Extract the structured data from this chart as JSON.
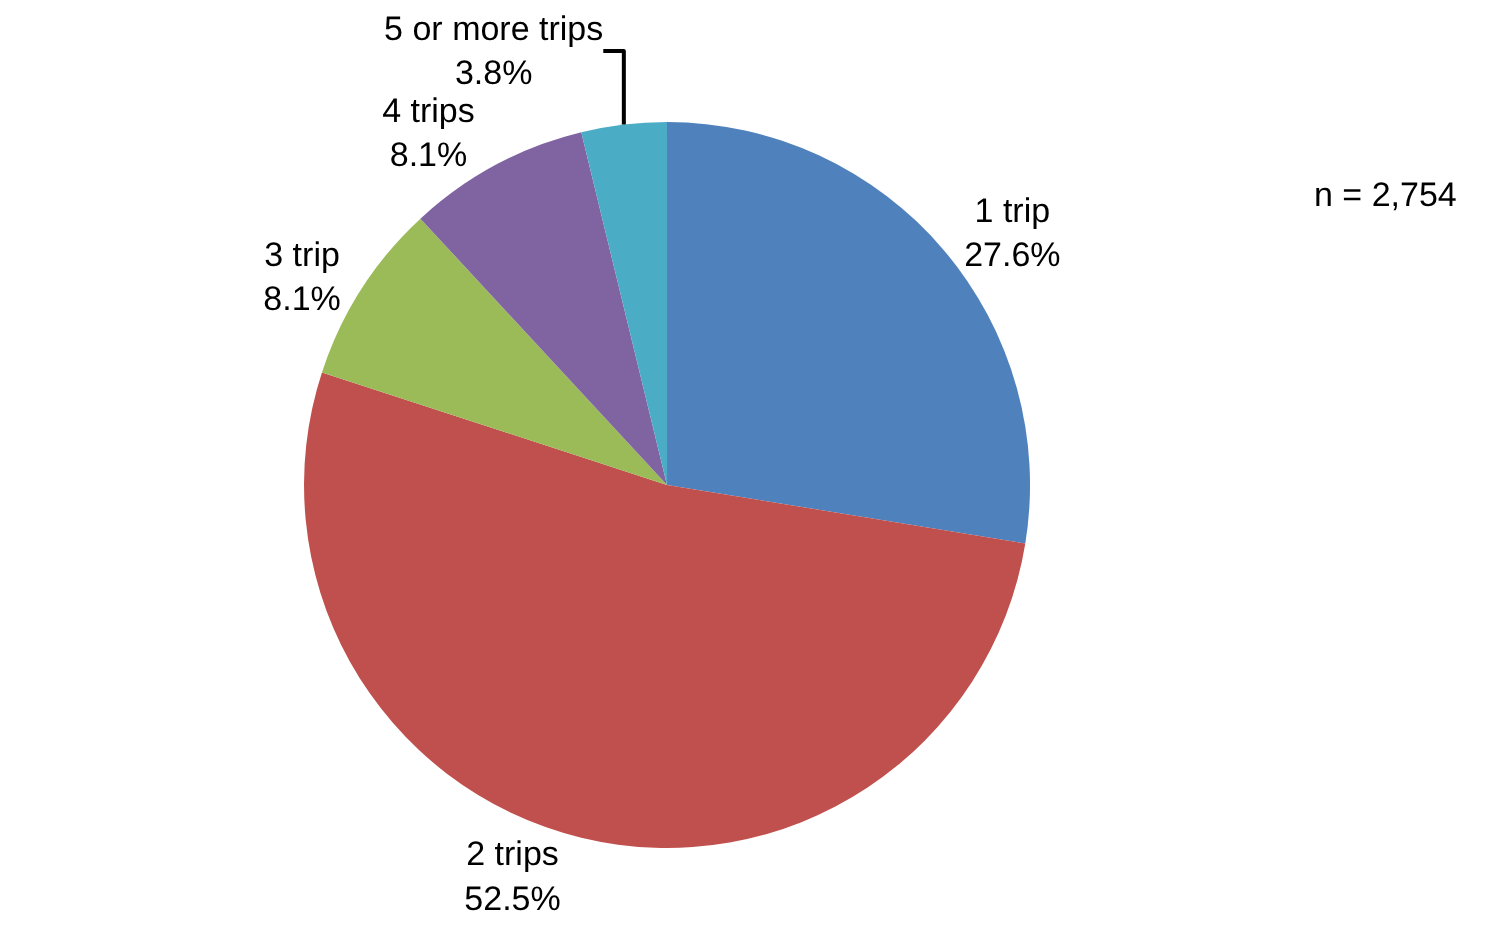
{
  "chart_data": {
    "type": "pie",
    "categories": [
      "1 trip",
      "2 trips",
      "3 trip",
      "4 trips",
      "5 or more trips"
    ],
    "values": [
      27.6,
      52.5,
      8.1,
      8.1,
      3.8
    ],
    "value_labels": [
      "27.6%",
      "52.5%",
      "8.1%",
      "8.1%",
      "3.8%"
    ],
    "colors": [
      "#4f81bd",
      "#c0504d",
      "#9bbb59",
      "#8064a2",
      "#4bacc6"
    ],
    "annotations": [
      "n = 2,754"
    ],
    "legend": false
  }
}
